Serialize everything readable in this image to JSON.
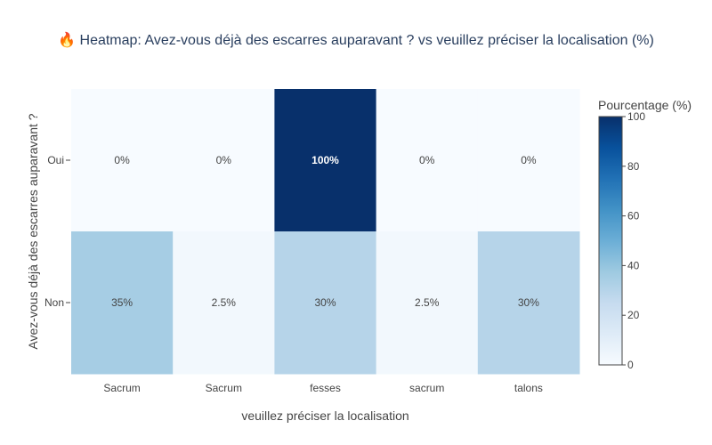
{
  "chart_data": {
    "type": "heatmap",
    "title": "🔥 Heatmap: Avez-vous déjà des escarres auparavant ? vs veuillez préciser la localisation (%)",
    "xlabel": "veuillez préciser la localisation",
    "ylabel": "Avez-vous déjà des escarres auparavant ?",
    "x_categories": [
      "Sacrum",
      "Sacrum",
      "fesses",
      "sacrum",
      "talons"
    ],
    "y_categories": [
      "Oui",
      "Non"
    ],
    "values": [
      [
        0,
        0,
        100,
        0,
        0
      ],
      [
        35,
        2.5,
        30,
        2.5,
        30
      ]
    ],
    "labels": [
      [
        "0%",
        "0%",
        "100%",
        "0%",
        "0%"
      ],
      [
        "35%",
        "2.5%",
        "30%",
        "2.5%",
        "30%"
      ]
    ],
    "colorbar": {
      "title": "Pourcentage (%)",
      "range": [
        0,
        100
      ],
      "ticks": [
        "0",
        "20",
        "40",
        "60",
        "80",
        "100"
      ],
      "colorscale": [
        "#f7fbff",
        "#deebf7",
        "#c6dbef",
        "#9ecae1",
        "#6baed6",
        "#4292c6",
        "#2171b5",
        "#08519c",
        "#08306b"
      ]
    }
  }
}
